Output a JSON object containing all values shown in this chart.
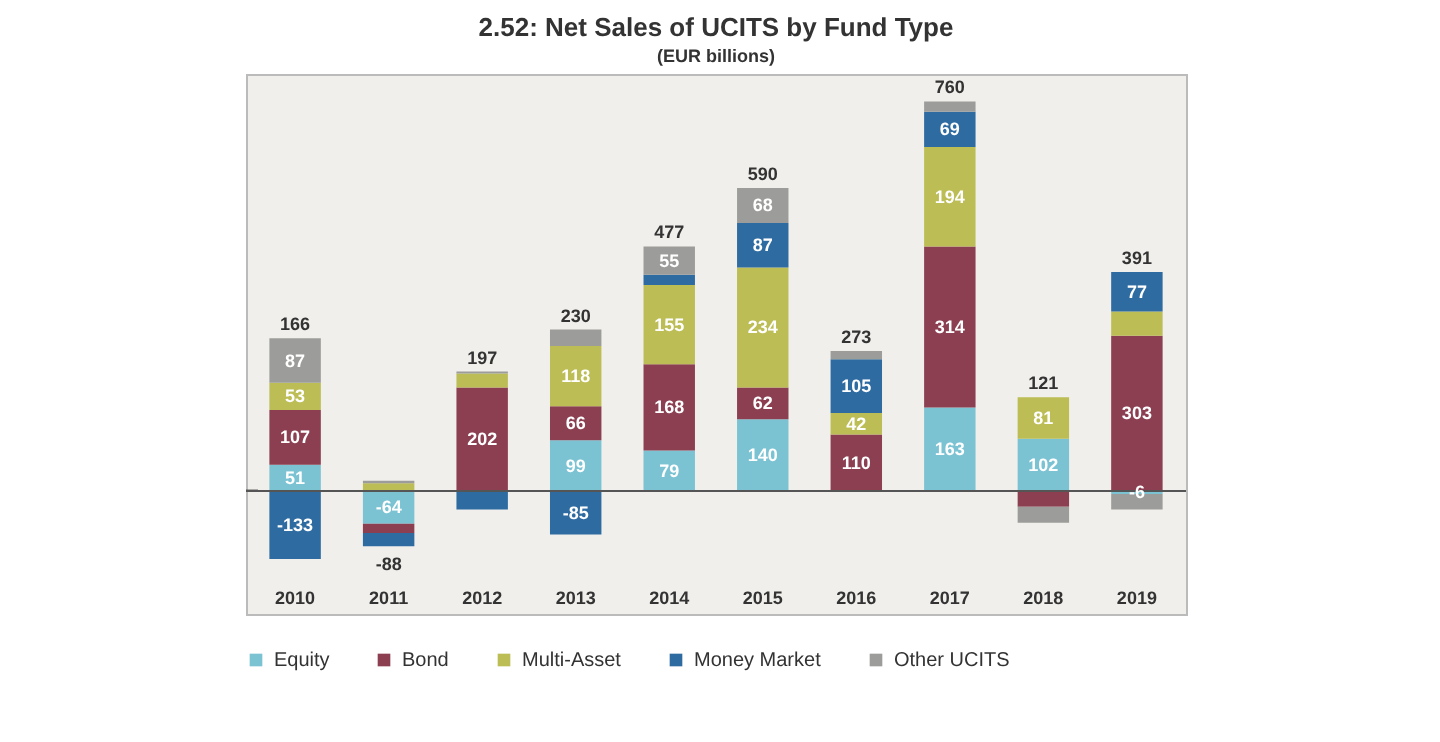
{
  "chart_data": {
    "type": "bar",
    "stacked": true,
    "title": "2.52: Net Sales of UCITS by Fund Type",
    "subtitle": "(EUR billions)",
    "categories": [
      "2010",
      "2011",
      "2012",
      "2013",
      "2014",
      "2015",
      "2016",
      "2017",
      "2018",
      "2019"
    ],
    "series": [
      {
        "name": "Equity",
        "color": "#7bc3d3",
        "values": [
          51,
          -64,
          0,
          99,
          79,
          140,
          0,
          163,
          102,
          -6
        ],
        "value_labels": [
          "51",
          "-64",
          null,
          "99",
          "79",
          "140",
          null,
          "163",
          "102",
          "-6"
        ]
      },
      {
        "name": "Bond",
        "color": "#8b3f51",
        "values": [
          107,
          -18,
          202,
          66,
          168,
          62,
          110,
          314,
          -31,
          303
        ],
        "value_labels": [
          "107",
          null,
          "202",
          "66",
          "168",
          "62",
          "110",
          "314",
          null,
          "303"
        ]
      },
      {
        "name": "Multi-Asset",
        "color": "#bcbd54",
        "values": [
          53,
          15,
          27,
          118,
          155,
          234,
          42,
          194,
          81,
          47
        ],
        "value_labels": [
          "53",
          null,
          null,
          "118",
          "155",
          "234",
          "42",
          "194",
          "81",
          null
        ]
      },
      {
        "name": "Money Market",
        "color": "#2e6ba1",
        "values": [
          -133,
          -26,
          -36,
          -85,
          20,
          87,
          105,
          69,
          0,
          77
        ],
        "value_labels": [
          "-133",
          null,
          null,
          "-85",
          null,
          "87",
          "105",
          "69",
          null,
          "77"
        ]
      },
      {
        "name": "Other UCITS",
        "color": "#9c9c9a",
        "values": [
          87,
          5,
          4,
          32,
          55,
          68,
          16,
          20,
          -31,
          -30
        ],
        "value_labels": [
          "87",
          null,
          null,
          null,
          "55",
          "68",
          null,
          null,
          null,
          null
        ]
      }
    ],
    "totals": [
      "166",
      "-88",
      "197",
      "230",
      "477",
      "590",
      "273",
      "760",
      "121",
      "391"
    ],
    "legend": "bottom"
  }
}
